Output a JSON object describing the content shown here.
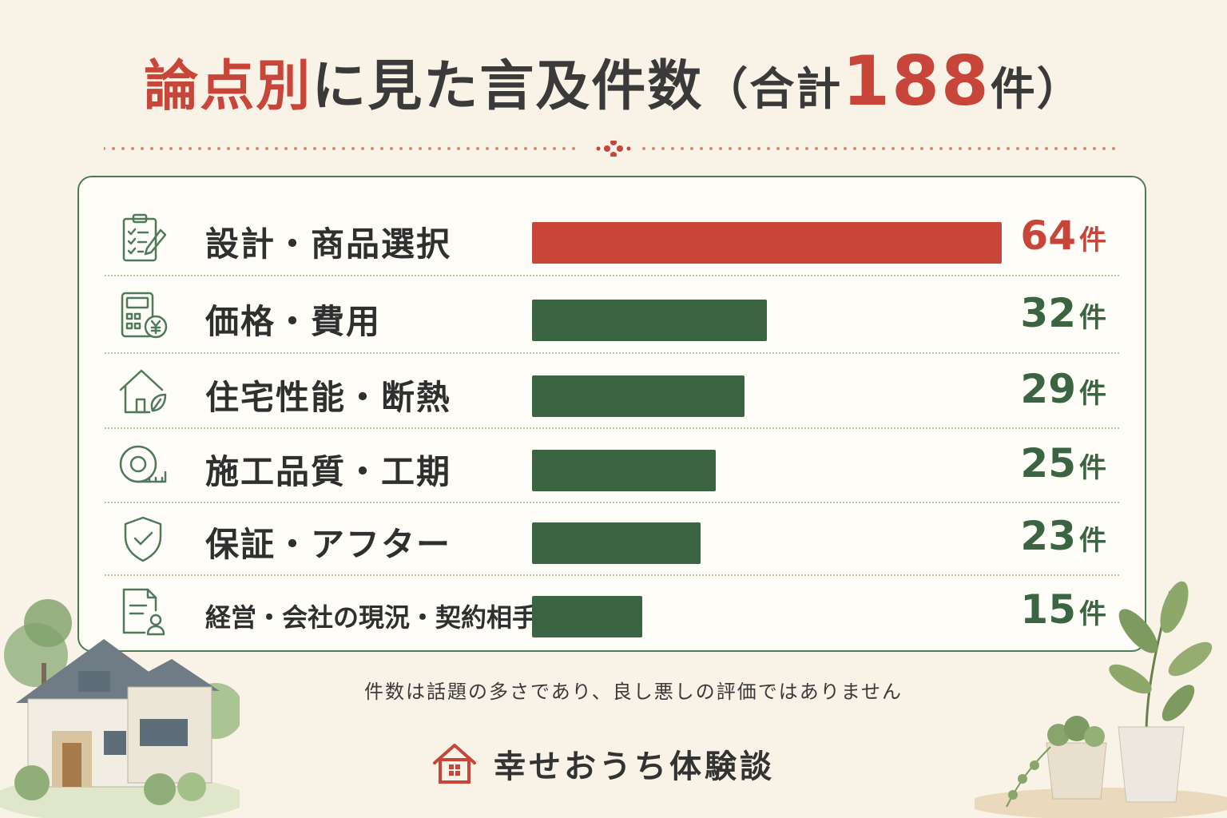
{
  "title": {
    "part_red": "論点別",
    "part_dark": "に見た言及件数",
    "open_paren": "（合計",
    "total": "188",
    "close": "件）"
  },
  "colors": {
    "accent": "#c8453a",
    "bar_green": "#3a6442",
    "line_green": "#4f7a58"
  },
  "chart_data": {
    "type": "bar",
    "orientation": "horizontal",
    "categories": [
      "設計・商品選択",
      "価格・費用",
      "住宅性能・断熱",
      "施工品質・工期",
      "保証・アフター",
      "経営・会社の現況・契約相手"
    ],
    "values": [
      64,
      32,
      29,
      25,
      23,
      15
    ],
    "value_labels": [
      "64",
      "32",
      "29",
      "25",
      "23",
      "15"
    ],
    "unit": "件",
    "icons": [
      "clipboard-checklist-icon",
      "calculator-yen-icon",
      "house-leaf-icon",
      "tape-measure-icon",
      "shield-check-icon",
      "document-person-icon"
    ],
    "highlight_index": 0,
    "xlim": [
      0,
      64
    ],
    "grid": false
  },
  "note": "件数は話題の多さであり、良し悪しの評価ではありません",
  "brand": "幸せおうち体験談"
}
